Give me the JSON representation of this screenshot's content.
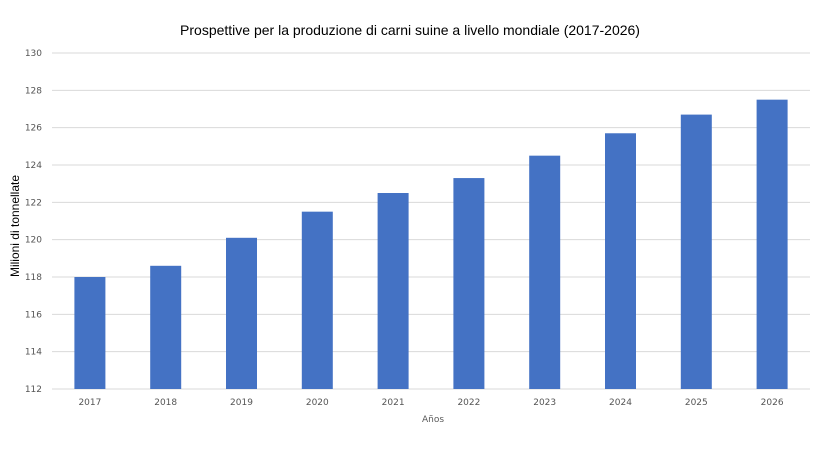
{
  "chart_data": {
    "type": "bar",
    "title": "Prospettive per la produzione di carni suine a livello mondiale (2017-2026)",
    "xlabel": "Años",
    "ylabel": "Milioni di tonnellate",
    "categories": [
      "2017",
      "2018",
      "2019",
      "2020",
      "2021",
      "2022",
      "2023",
      "2024",
      "2025",
      "2026"
    ],
    "values": [
      118.0,
      118.6,
      120.1,
      121.5,
      122.5,
      123.3,
      124.5,
      125.7,
      126.7,
      127.5
    ],
    "ylim": [
      112,
      130
    ],
    "yticks": [
      "112",
      "114",
      "116",
      "118",
      "120",
      "122",
      "124",
      "126",
      "128",
      "130"
    ],
    "grid": true,
    "legend": "none",
    "bar_color": "#4472c4",
    "grid_color": "#d9d9d9"
  }
}
